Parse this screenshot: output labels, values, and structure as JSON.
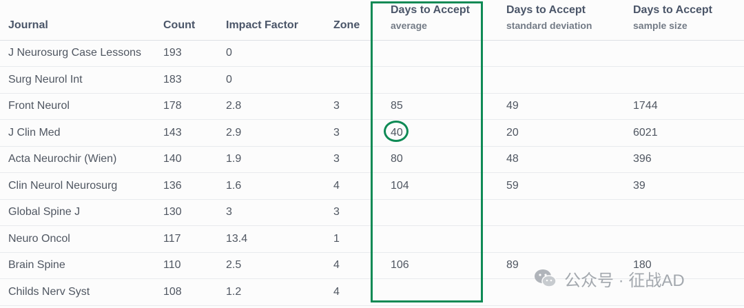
{
  "columns": {
    "journal": "Journal",
    "count": "Count",
    "impact_factor": "Impact Factor",
    "zone": "Zone",
    "days_avg_title": "Days to Accept",
    "days_avg_sub": "average",
    "days_sd_title": "Days to Accept",
    "days_sd_sub": "standard deviation",
    "days_n_title": "Days to Accept",
    "days_n_sub": "sample size"
  },
  "rows": [
    {
      "journal": "J Neurosurg Case Lessons",
      "count": "193",
      "impact_factor": "0",
      "zone": "",
      "days_avg": "",
      "days_sd": "",
      "days_n": ""
    },
    {
      "journal": "Surg Neurol Int",
      "count": "183",
      "impact_factor": "0",
      "zone": "",
      "days_avg": "",
      "days_sd": "",
      "days_n": ""
    },
    {
      "journal": "Front Neurol",
      "count": "178",
      "impact_factor": "2.8",
      "zone": "3",
      "days_avg": "85",
      "days_sd": "49",
      "days_n": "1744"
    },
    {
      "journal": "J Clin Med",
      "count": "143",
      "impact_factor": "2.9",
      "zone": "3",
      "days_avg": "40",
      "days_sd": "20",
      "days_n": "6021"
    },
    {
      "journal": "Acta Neurochir (Wien)",
      "count": "140",
      "impact_factor": "1.9",
      "zone": "3",
      "days_avg": "80",
      "days_sd": "48",
      "days_n": "396"
    },
    {
      "journal": "Clin Neurol Neurosurg",
      "count": "136",
      "impact_factor": "1.6",
      "zone": "4",
      "days_avg": "104",
      "days_sd": "59",
      "days_n": "39"
    },
    {
      "journal": "Global Spine J",
      "count": "130",
      "impact_factor": "3",
      "zone": "3",
      "days_avg": "",
      "days_sd": "",
      "days_n": ""
    },
    {
      "journal": "Neuro Oncol",
      "count": "117",
      "impact_factor": "13.4",
      "zone": "1",
      "days_avg": "",
      "days_sd": "",
      "days_n": ""
    },
    {
      "journal": "Brain Spine",
      "count": "110",
      "impact_factor": "2.5",
      "zone": "4",
      "days_avg": "106",
      "days_sd": "89",
      "days_n": "180"
    },
    {
      "journal": "Childs Nerv Syst",
      "count": "108",
      "impact_factor": "1.2",
      "zone": "4",
      "days_avg": "",
      "days_sd": "",
      "days_n": ""
    }
  ],
  "watermark": {
    "text": "公众号 · 征战AD",
    "icon": "wechat-icon"
  },
  "colors": {
    "highlight": "#0e8a55"
  }
}
